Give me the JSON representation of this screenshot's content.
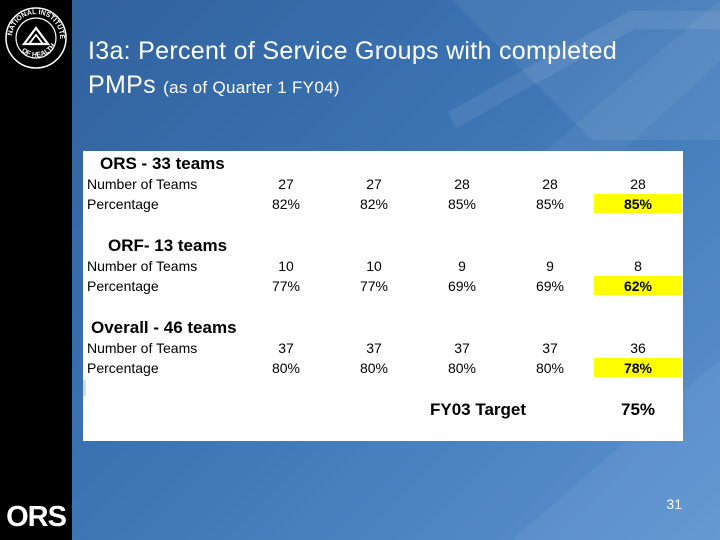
{
  "title": {
    "main": "I3a:  Percent of Service Groups with completed PMPs",
    "sub": "(as of Quarter 1 FY04)"
  },
  "sections": [
    {
      "title": "ORS - 33 teams",
      "rows": [
        {
          "label": "Number of Teams",
          "values": [
            "27",
            "27",
            "28",
            "28",
            "28"
          ]
        },
        {
          "label": "Percentage",
          "values": [
            "82%",
            "82%",
            "85%",
            "85%",
            "85%"
          ]
        }
      ]
    },
    {
      "title": "ORF- 13 teams",
      "rows": [
        {
          "label": "Number of Teams",
          "values": [
            "10",
            "10",
            "9",
            "9",
            "8"
          ]
        },
        {
          "label": "Percentage",
          "values": [
            "77%",
            "77%",
            "69%",
            "69%",
            "62%"
          ]
        }
      ]
    },
    {
      "title": "Overall - 46 teams",
      "rows": [
        {
          "label": "Number of Teams",
          "values": [
            "37",
            "37",
            "37",
            "37",
            "36"
          ]
        },
        {
          "label": "Percentage",
          "values": [
            "80%",
            "80%",
            "80%",
            "80%",
            "78%"
          ]
        }
      ]
    }
  ],
  "target": {
    "label": "FY03 Target",
    "value": "75%"
  },
  "footer": {
    "logo": "ORS",
    "seal": "NATIONAL INSTITUTES OF HEALTH",
    "page_number": "31"
  },
  "colors": {
    "background": "#3b73b3",
    "sidebar": "#000000",
    "highlight": "#ffff00"
  }
}
